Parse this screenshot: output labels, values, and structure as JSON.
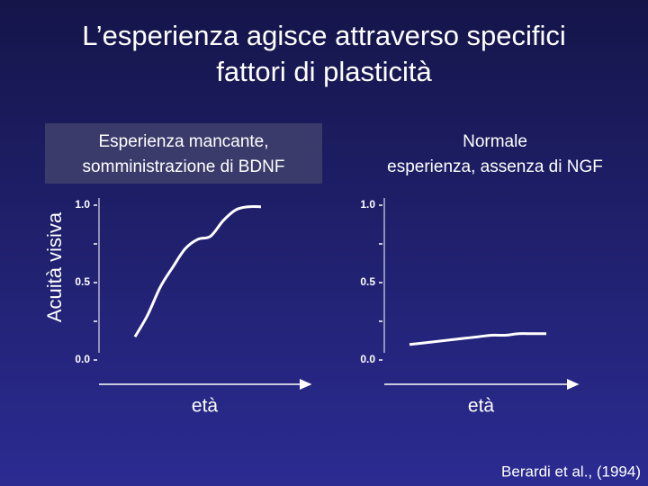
{
  "title": [
    "L’esperienza agisce attraverso specifici",
    "fattori di plasticità"
  ],
  "source": "Berardi et al., (1994)",
  "chart_data": [
    {
      "type": "line",
      "title": [
        "Esperienza mancante,",
        "somministrazione di BDNF"
      ],
      "ylabel": "Acuità visiva",
      "xlabel": "età",
      "categories": [
        null,
        null,
        null,
        null,
        null,
        null,
        null,
        null,
        null,
        null,
        null
      ],
      "series": [
        {
          "color": "#ffffff",
          "values": [
            0.15,
            0.29,
            0.47,
            0.6,
            0.72,
            0.78,
            0.8,
            0.9,
            0.97,
            0.99,
            0.99
          ]
        }
      ],
      "ylim": [
        0,
        1
      ],
      "yticks": [
        {
          "value": 0,
          "label": "0.0"
        },
        {
          "value": 0.5,
          "label": "0.5"
        },
        {
          "value": 1,
          "label": "1.0"
        }
      ],
      "yminor": [
        0.25,
        0.75
      ]
    },
    {
      "type": "line",
      "title": [
        "Normale",
        "esperienza, assenza di NGF"
      ],
      "xlabel": "età",
      "categories": [
        null,
        null,
        null,
        null,
        null,
        null,
        null,
        null,
        null,
        null,
        null
      ],
      "series": [
        {
          "color": "#ffffff",
          "values": [
            0.1,
            0.11,
            0.12,
            0.13,
            0.14,
            0.15,
            0.16,
            0.16,
            0.17,
            0.17,
            0.17
          ]
        }
      ],
      "ylim": [
        0,
        1
      ],
      "yticks": [
        {
          "value": 0,
          "label": "0.0"
        },
        {
          "value": 0.5,
          "label": "0.5"
        },
        {
          "value": 1,
          "label": "1.0"
        }
      ],
      "yminor": [
        0.25,
        0.75
      ]
    }
  ]
}
